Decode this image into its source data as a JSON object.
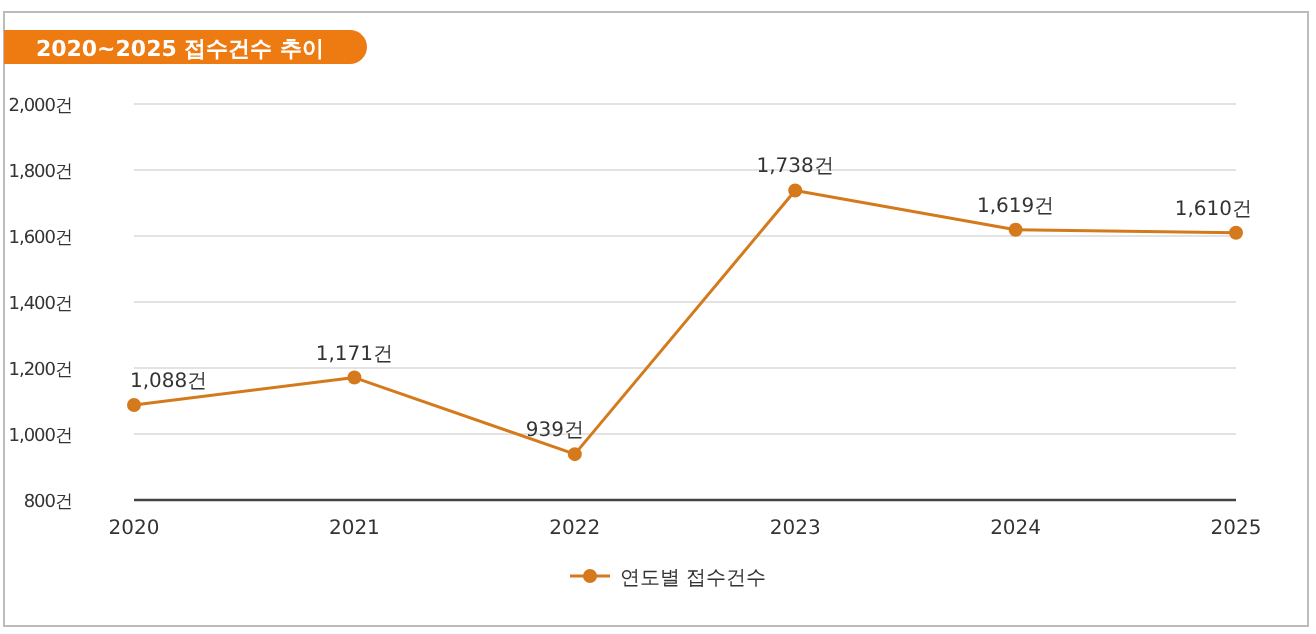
{
  "chart_data": {
    "type": "line",
    "title": "2020~2025 접수건수 추이",
    "categories": [
      "2020",
      "2021",
      "2022",
      "2023",
      "2024",
      "2025"
    ],
    "series": [
      {
        "name": "연도별 접수건수",
        "color": "#d47a1c",
        "values": [
          1088,
          1171,
          939,
          1738,
          1619,
          1610
        ],
        "value_labels": [
          "1,088건",
          "1,171건",
          "939건",
          "1,738건",
          "1,619건",
          "1,610건"
        ]
      }
    ],
    "ylim": [
      800,
      2000
    ],
    "yticks": [
      {
        "value": 800,
        "label": "800건"
      },
      {
        "value": 1000,
        "label": "1,000건"
      },
      {
        "value": 1200,
        "label": "1,200건"
      },
      {
        "value": 1400,
        "label": "1,400건"
      },
      {
        "value": 1600,
        "label": "1,600건"
      },
      {
        "value": 1800,
        "label": "1,800건"
      },
      {
        "value": 2000,
        "label": "2,000건"
      }
    ],
    "grid": "y",
    "legend": "bottom",
    "marker": "circle",
    "line_style": "solid"
  }
}
